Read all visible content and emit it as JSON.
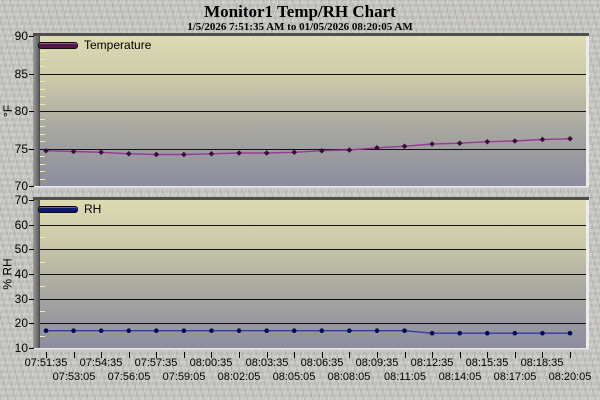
{
  "header": {
    "title": "Monitor1 Temp/RH Chart",
    "subtitle": "1/5/2026 7:51:35 AM to 01/05/2026 08:20:05 AM"
  },
  "colors": {
    "window_background": "#c7c6c2",
    "plot_gradient_top": "#dedbb2",
    "plot_gradient_bottom": "#8c8d9f",
    "gridline": "#111111",
    "minor_tick": "#efe9ad",
    "temperature_line": "#993a99",
    "temperature_marker": "#380b38",
    "rh_line": "#3939a6",
    "rh_marker": "#000a50"
  },
  "chart_data": [
    {
      "type": "line",
      "name": "temperature",
      "legend": "Temperature",
      "legend_position": "top-left",
      "ylabel": "°F",
      "ylim": [
        70,
        90
      ],
      "y_major_step": 5,
      "y_minor_step": 1,
      "grid": true,
      "marker": "diamond",
      "line_color": "#993a99",
      "marker_color": "#380b38",
      "swatch_color": "#521647",
      "x": [
        "07:51:35",
        "07:53:05",
        "07:54:35",
        "07:56:05",
        "07:57:35",
        "07:59:05",
        "08:00:35",
        "08:02:05",
        "08:03:35",
        "08:05:05",
        "08:06:35",
        "08:08:05",
        "08:09:35",
        "08:11:05",
        "08:12:35",
        "08:14:05",
        "08:15:35",
        "08:17:05",
        "08:18:35",
        "08:20:05"
      ],
      "values": [
        74.7,
        74.6,
        74.5,
        74.3,
        74.2,
        74.2,
        74.3,
        74.4,
        74.4,
        74.5,
        74.7,
        74.8,
        75.1,
        75.3,
        75.6,
        75.7,
        75.9,
        76.0,
        76.2,
        76.3
      ]
    },
    {
      "type": "line",
      "name": "rh",
      "legend": "RH",
      "legend_position": "top-left",
      "ylabel": "% RH",
      "ylim": [
        10,
        70
      ],
      "y_major_step": 10,
      "y_minor_step": 5,
      "grid": true,
      "marker": "dot",
      "line_color": "#3939a6",
      "marker_color": "#000a50",
      "swatch_color": "#10166e",
      "x": [
        "07:51:35",
        "07:53:05",
        "07:54:35",
        "07:56:05",
        "07:57:35",
        "07:59:05",
        "08:00:35",
        "08:02:05",
        "08:03:35",
        "08:05:05",
        "08:06:35",
        "08:08:05",
        "08:09:35",
        "08:11:05",
        "08:12:35",
        "08:14:05",
        "08:15:35",
        "08:17:05",
        "08:18:35",
        "08:20:05"
      ],
      "values": [
        17,
        17,
        17,
        17,
        17,
        17,
        17,
        17,
        17,
        17,
        17,
        17,
        17,
        17,
        16,
        16,
        16,
        16,
        16,
        16
      ]
    }
  ],
  "x_axis": {
    "row1_labels": [
      "07:51:35",
      "07:54:35",
      "07:57:35",
      "08:00:35",
      "08:03:35",
      "08:06:35",
      "08:09:35",
      "08:12:35",
      "08:15:35",
      "08:18:35"
    ],
    "row2_labels": [
      "07:53:05",
      "07:56:05",
      "07:59:05",
      "08:02:05",
      "08:05:05",
      "08:08:05",
      "08:11:05",
      "08:14:05",
      "08:17:05",
      "08:20:05"
    ]
  }
}
